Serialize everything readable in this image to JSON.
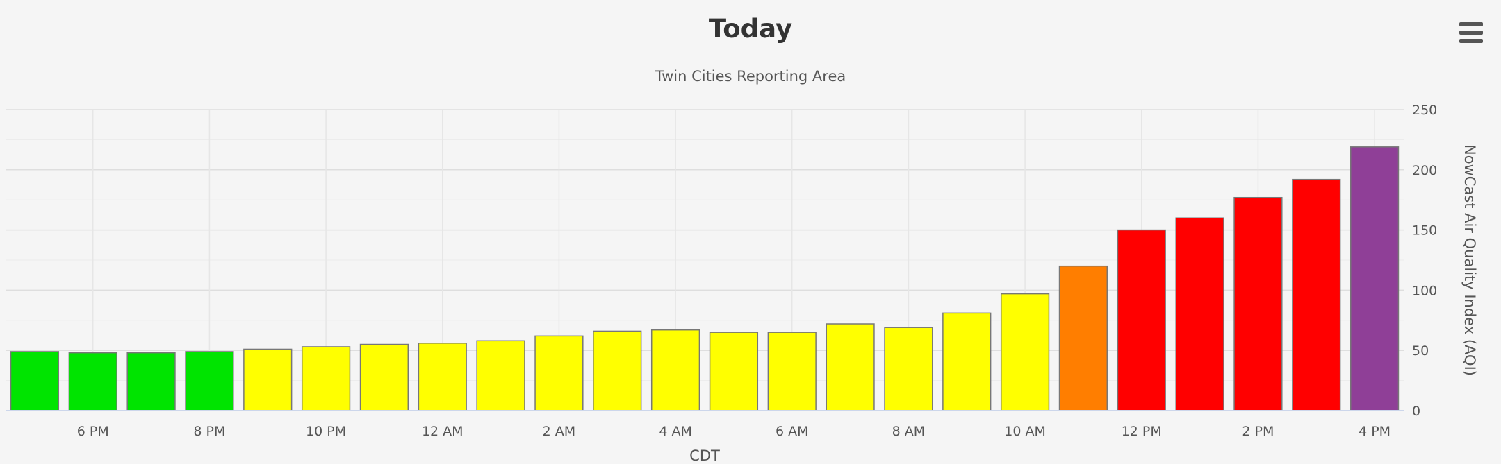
{
  "chart_data": {
    "type": "bar",
    "title": "Today",
    "subtitle": "Twin Cities Reporting Area",
    "xlabel": "CDT",
    "ylabel": "NowCast Air Quality Index (AQI)",
    "y_axis_side": "right",
    "ylim": [
      0,
      250
    ],
    "yticks": [
      0,
      50,
      100,
      150,
      200,
      250
    ],
    "x_tick_labels": [
      "6 PM",
      "8 PM",
      "10 PM",
      "12 AM",
      "2 AM",
      "4 AM",
      "6 AM",
      "8 AM",
      "10 AM",
      "12 PM",
      "2 PM",
      "4 PM"
    ],
    "grid": true,
    "values": [
      49,
      48,
      48,
      49,
      51,
      53,
      55,
      56,
      58,
      62,
      66,
      67,
      65,
      65,
      72,
      69,
      81,
      97,
      120,
      150,
      160,
      177,
      192,
      219
    ],
    "colors": [
      "#00e400",
      "#00e400",
      "#00e400",
      "#00e400",
      "#ffff00",
      "#ffff00",
      "#ffff00",
      "#ffff00",
      "#ffff00",
      "#ffff00",
      "#ffff00",
      "#ffff00",
      "#ffff00",
      "#ffff00",
      "#ffff00",
      "#ffff00",
      "#ffff00",
      "#ffff00",
      "#ff7e00",
      "#ff0000",
      "#ff0000",
      "#ff0000",
      "#ff0000",
      "#8f3f97"
    ]
  },
  "menu_icon": "hamburger-menu-icon"
}
